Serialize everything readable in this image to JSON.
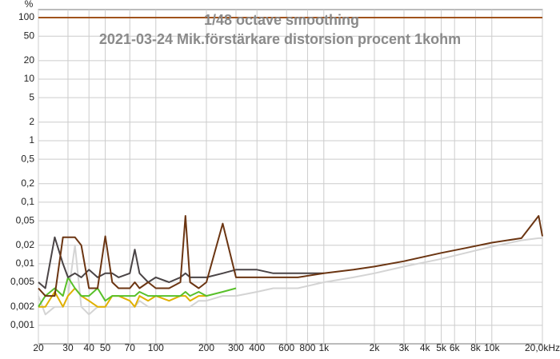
{
  "chart_data": {
    "type": "line",
    "title": "1/48 octave smoothing",
    "subtitle": "2021-03-24 Mik.förstärkare distorsion procent 1kohm",
    "y_label": "%",
    "xscale": "log",
    "yscale": "log",
    "grid": true,
    "xlim": [
      20,
      20000
    ],
    "ylim": [
      0.0005,
      135
    ],
    "xticks": [
      20,
      30,
      40,
      50,
      70,
      100,
      200,
      300,
      400,
      600,
      800,
      {
        "value": 1000,
        "label": "1k"
      },
      {
        "value": 2000,
        "label": "2k"
      },
      {
        "value": 3000,
        "label": "3k"
      },
      {
        "value": 4000,
        "label": "4k"
      },
      {
        "value": 5000,
        "label": "5k"
      },
      {
        "value": 6000,
        "label": "6k"
      },
      {
        "value": 8000,
        "label": "8k"
      },
      {
        "value": 10000,
        "label": "10k"
      },
      {
        "value": 20000,
        "label": "20,0kHz"
      }
    ],
    "yticks": [
      100,
      50,
      20,
      10,
      5,
      2,
      1,
      {
        "value": 0.5,
        "label": "0,5"
      },
      {
        "value": 0.2,
        "label": "0,2"
      },
      {
        "value": 0.1,
        "label": "0,1"
      },
      {
        "value": 0.05,
        "label": "0,05"
      },
      {
        "value": 0.02,
        "label": "0,02"
      },
      {
        "value": 0.01,
        "label": "0,01"
      },
      {
        "value": 0.005,
        "label": "0,005"
      },
      {
        "value": 0.002,
        "label": "0,002"
      },
      {
        "value": 0.001,
        "label": "0,001"
      }
    ],
    "x": [
      20,
      22,
      25,
      28,
      30,
      33,
      36,
      40,
      45,
      50,
      55,
      60,
      70,
      75,
      80,
      90,
      100,
      120,
      140,
      150,
      160,
      180,
      200,
      250,
      300,
      400,
      500,
      700,
      1000,
      1500,
      2000,
      3000,
      5000,
      7000,
      10000,
      15000,
      19000,
      20000
    ],
    "series": [
      {
        "color": "#d4d4d4",
        "values": [
          0.003,
          0.0015,
          0.002,
          0.002,
          0.003,
          0.02,
          0.002,
          0.0015,
          0.002,
          0.002,
          0.002,
          0.002,
          0.002,
          0.002,
          0.0025,
          0.002,
          0.002,
          0.002,
          0.002,
          0.002,
          0.002,
          0.0025,
          0.0025,
          0.003,
          0.003,
          0.0035,
          0.004,
          0.004,
          0.005,
          0.006,
          0.007,
          0.009,
          0.012,
          0.015,
          0.019,
          0.024,
          0.026,
          0.026
        ]
      },
      {
        "color": "#e0b000",
        "values": [
          0.002,
          0.002,
          0.0035,
          0.002,
          0.003,
          0.004,
          0.003,
          0.0025,
          0.002,
          0.002,
          0.003,
          0.003,
          0.0025,
          0.002,
          0.003,
          0.0025,
          0.003,
          0.0025,
          0.003,
          0.003,
          0.0025,
          0.003,
          0.003,
          null,
          null,
          null,
          null,
          null,
          null,
          null,
          null,
          null,
          null,
          null,
          null,
          null,
          null,
          null
        ]
      },
      {
        "color": "#58c02a",
        "values": [
          0.002,
          0.003,
          0.004,
          0.003,
          0.006,
          0.004,
          0.003,
          0.003,
          0.004,
          0.0025,
          0.003,
          0.003,
          0.003,
          0.003,
          0.0035,
          0.003,
          0.003,
          0.003,
          0.003,
          0.0035,
          0.003,
          0.0035,
          0.003,
          0.0035,
          0.004,
          null,
          null,
          null,
          null,
          null,
          null,
          null,
          null,
          null,
          null,
          null,
          null,
          null
        ]
      },
      {
        "color": "#4a4446",
        "values": [
          0.005,
          0.004,
          0.027,
          0.01,
          0.006,
          0.007,
          0.006,
          0.008,
          0.006,
          0.007,
          0.007,
          0.006,
          0.007,
          0.017,
          0.007,
          0.005,
          0.006,
          0.005,
          0.006,
          0.007,
          0.006,
          0.006,
          0.006,
          0.007,
          0.008,
          0.008,
          0.007,
          0.007,
          0.007,
          null,
          null,
          null,
          null,
          null,
          null,
          null,
          null,
          null
        ]
      },
      {
        "color": "#6b3512",
        "values": [
          0.004,
          0.003,
          0.003,
          0.027,
          0.027,
          0.027,
          0.02,
          0.004,
          0.004,
          0.028,
          0.005,
          0.004,
          0.004,
          0.005,
          0.004,
          0.005,
          0.004,
          0.004,
          0.005,
          0.06,
          0.005,
          0.004,
          0.005,
          0.045,
          0.006,
          0.006,
          0.006,
          0.006,
          0.007,
          0.008,
          0.009,
          0.011,
          0.015,
          0.018,
          0.022,
          0.026,
          0.06,
          0.028
        ]
      },
      {
        "color": "#a0521c",
        "values": [
          100,
          100,
          100,
          100,
          100,
          100,
          100,
          100,
          100,
          100,
          100,
          100,
          100,
          100,
          100,
          100,
          100,
          100,
          100,
          100,
          100,
          100,
          100,
          100,
          100,
          100,
          100,
          100,
          100,
          100,
          100,
          100,
          100,
          100,
          100,
          100,
          100,
          100
        ]
      }
    ]
  }
}
